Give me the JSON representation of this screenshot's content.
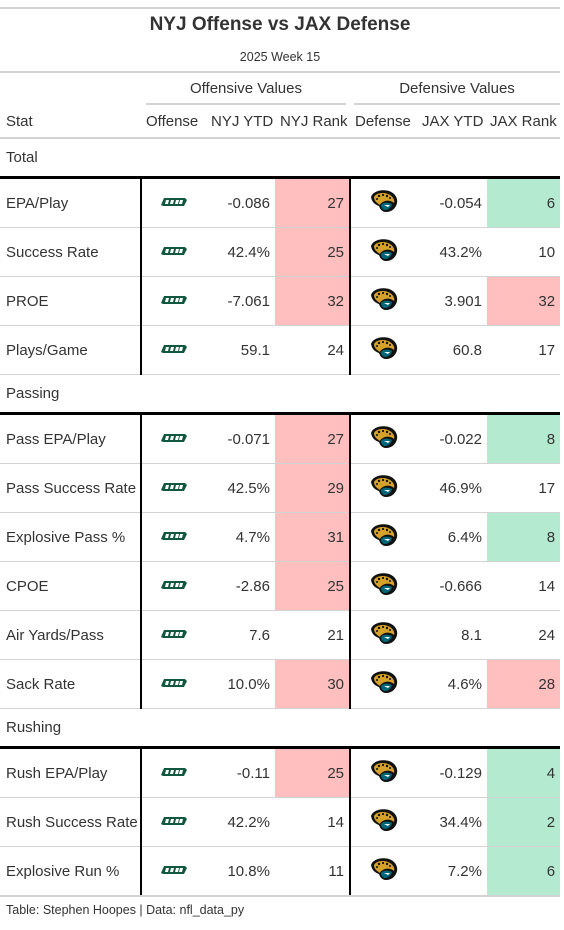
{
  "title": "NYJ Offense vs JAX Defense",
  "subtitle": "2025 Week 15",
  "spanners": {
    "offense": "Offensive Values",
    "defense": "Defensive Values"
  },
  "headers": {
    "stat": "Stat",
    "offense": "Offense",
    "nyj_ytd": "NYJ YTD",
    "nyj_rank": "NYJ Rank",
    "defense": "Defense",
    "jax_ytd": "JAX YTD",
    "jax_rank": "JAX Rank"
  },
  "logos": {
    "offense": "jets-logo",
    "defense": "jaguars-logo"
  },
  "colors": {
    "bad": "#ffbfbf",
    "good": "#b4ead0",
    "jets_green": "#125740",
    "jags_teal": "#006778",
    "jags_gold": "#d7a22a"
  },
  "groups": [
    {
      "label": "Total",
      "rows": [
        {
          "stat": "EPA/Play",
          "nyj_ytd": "-0.086",
          "nyj_rank": "27",
          "nyj_color": "red",
          "jax_ytd": "-0.054",
          "jax_rank": "6",
          "jax_color": "green"
        },
        {
          "stat": "Success Rate",
          "nyj_ytd": "42.4%",
          "nyj_rank": "25",
          "nyj_color": "red",
          "jax_ytd": "43.2%",
          "jax_rank": "10",
          "jax_color": ""
        },
        {
          "stat": "PROE",
          "nyj_ytd": "-7.061",
          "nyj_rank": "32",
          "nyj_color": "red",
          "jax_ytd": "3.901",
          "jax_rank": "32",
          "jax_color": "red"
        },
        {
          "stat": "Plays/Game",
          "nyj_ytd": "59.1",
          "nyj_rank": "24",
          "nyj_color": "",
          "jax_ytd": "60.8",
          "jax_rank": "17",
          "jax_color": ""
        }
      ]
    },
    {
      "label": "Passing",
      "rows": [
        {
          "stat": "Pass EPA/Play",
          "nyj_ytd": "-0.071",
          "nyj_rank": "27",
          "nyj_color": "red",
          "jax_ytd": "-0.022",
          "jax_rank": "8",
          "jax_color": "green"
        },
        {
          "stat": "Pass Success Rate",
          "nyj_ytd": "42.5%",
          "nyj_rank": "29",
          "nyj_color": "red",
          "jax_ytd": "46.9%",
          "jax_rank": "17",
          "jax_color": ""
        },
        {
          "stat": "Explosive Pass %",
          "nyj_ytd": "4.7%",
          "nyj_rank": "31",
          "nyj_color": "red",
          "jax_ytd": "6.4%",
          "jax_rank": "8",
          "jax_color": "green"
        },
        {
          "stat": "CPOE",
          "nyj_ytd": "-2.86",
          "nyj_rank": "25",
          "nyj_color": "red",
          "jax_ytd": "-0.666",
          "jax_rank": "14",
          "jax_color": ""
        },
        {
          "stat": "Air Yards/Pass",
          "nyj_ytd": "7.6",
          "nyj_rank": "21",
          "nyj_color": "",
          "jax_ytd": "8.1",
          "jax_rank": "24",
          "jax_color": ""
        },
        {
          "stat": "Sack Rate",
          "nyj_ytd": "10.0%",
          "nyj_rank": "30",
          "nyj_color": "red",
          "jax_ytd": "4.6%",
          "jax_rank": "28",
          "jax_color": "red"
        }
      ]
    },
    {
      "label": "Rushing",
      "rows": [
        {
          "stat": "Rush EPA/Play",
          "nyj_ytd": "-0.11",
          "nyj_rank": "25",
          "nyj_color": "red",
          "jax_ytd": "-0.129",
          "jax_rank": "4",
          "jax_color": "green"
        },
        {
          "stat": "Rush Success Rate",
          "nyj_ytd": "42.2%",
          "nyj_rank": "14",
          "nyj_color": "",
          "jax_ytd": "34.4%",
          "jax_rank": "2",
          "jax_color": "green"
        },
        {
          "stat": "Explosive Run %",
          "nyj_ytd": "10.8%",
          "nyj_rank": "11",
          "nyj_color": "",
          "jax_ytd": "7.2%",
          "jax_rank": "6",
          "jax_color": "green"
        }
      ]
    }
  ],
  "footer": "Table: Stephen Hoopes | Data: nfl_data_py"
}
